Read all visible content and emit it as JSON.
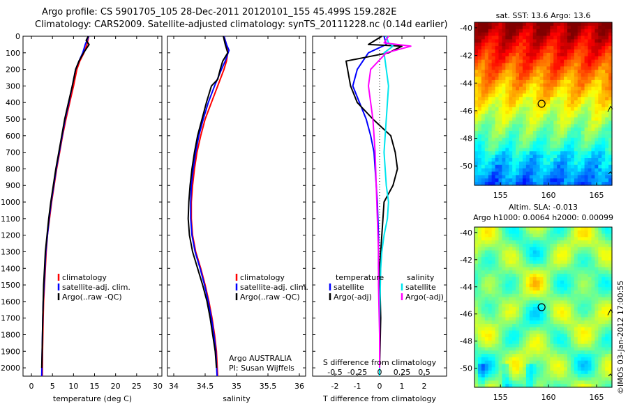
{
  "header": {
    "line1": "Argo profile: CS 5901705_105 28-Dec-2011 20120101_155 45.499S 159.282E",
    "line2": "Climatology: CARS2009. Satellite-adjusted climatology: synTS_20111228.nc (0.14d earlier)"
  },
  "watermark": "©IMOS 03-Jan-2012 17:00:55",
  "colors": {
    "climatology": "#ff0000",
    "satellite": "#0000ff",
    "argo": "#000000",
    "satellite_salinity": "#00e5ee",
    "argo_salinity": "#ff00ff",
    "dotted": "#000000"
  },
  "chart_data": [
    {
      "type": "line",
      "xlabel": "temperature (deg C)",
      "ylabel": "",
      "xlim": [
        -2,
        31
      ],
      "ylim": [
        2050,
        0
      ],
      "xticks": [
        "0",
        "5",
        "10",
        "15",
        "20",
        "25",
        "30"
      ],
      "yticks": [
        "0",
        "100",
        "200",
        "300",
        "400",
        "500",
        "600",
        "700",
        "800",
        "900",
        "1000",
        "1100",
        "1200",
        "1300",
        "1400",
        "1500",
        "1600",
        "1700",
        "1800",
        "1900",
        "2000"
      ],
      "legend": {
        "position": "lower-middle",
        "entries": [
          "climatology",
          "satellite-adj. clim.",
          "Argo(..raw -QC)"
        ]
      },
      "series": [
        {
          "name": "climatology",
          "color": "#ff0000",
          "x": [
            13.6,
            13.2,
            12.5,
            11.5,
            10.8,
            10.0,
            9.1,
            8.2,
            7.4,
            6.7,
            6.0,
            5.4,
            4.8,
            4.3,
            3.8,
            3.5,
            3.3,
            3.1,
            2.9,
            2.8,
            2.65,
            2.6
          ],
          "y": [
            0,
            50,
            100,
            150,
            200,
            300,
            400,
            500,
            600,
            700,
            800,
            900,
            1000,
            1100,
            1200,
            1300,
            1400,
            1500,
            1600,
            1700,
            1900,
            2050
          ]
        },
        {
          "name": "satellite-adj. clim.",
          "color": "#0000ff",
          "x": [
            13.6,
            12.8,
            12.2,
            11.3,
            10.5,
            9.7,
            8.9,
            8.0,
            7.3,
            6.6,
            5.9,
            5.3,
            4.7,
            4.2,
            3.8,
            3.4,
            3.2,
            3.0,
            2.8,
            2.7,
            2.55,
            2.45
          ],
          "y": [
            0,
            50,
            100,
            150,
            200,
            300,
            400,
            500,
            600,
            700,
            800,
            900,
            1000,
            1100,
            1200,
            1300,
            1400,
            1500,
            1600,
            1700,
            1900,
            2050
          ]
        },
        {
          "name": "Argo(..raw -QC)",
          "color": "#000000",
          "x": [
            13.5,
            13.0,
            13.7,
            12.4,
            11.3,
            10.5,
            9.7,
            8.8,
            7.9,
            7.2,
            6.5,
            5.8,
            5.2,
            4.6,
            4.1,
            3.7,
            3.3,
            3.1,
            2.9,
            2.8,
            2.7,
            2.55,
            2.45
          ],
          "y": [
            0,
            25,
            50,
            100,
            150,
            200,
            300,
            400,
            500,
            600,
            700,
            800,
            900,
            1000,
            1100,
            1200,
            1300,
            1400,
            1500,
            1600,
            1700,
            1900,
            2000
          ]
        }
      ],
      "annotations": []
    },
    {
      "type": "line",
      "xlabel": "salinity",
      "ylabel": "",
      "xlim": [
        33.9,
        36.1
      ],
      "ylim": [
        2050,
        0
      ],
      "xticks": [
        "34",
        "34.5",
        "35",
        "35.5",
        "36"
      ],
      "legend": {
        "position": "lower-middle",
        "entries": [
          "climatology",
          "satellite-adj. clim.",
          "Argo(..raw -QC)"
        ]
      },
      "series": [
        {
          "name": "climatology",
          "color": "#ff0000",
          "x": [
            34.8,
            34.84,
            34.86,
            34.84,
            34.8,
            34.7,
            34.6,
            34.5,
            34.43,
            34.37,
            34.33,
            34.3,
            34.28,
            34.28,
            34.3,
            34.35,
            34.43,
            34.5,
            34.56,
            34.61,
            34.65,
            34.68,
            34.7
          ],
          "y": [
            0,
            50,
            100,
            150,
            200,
            300,
            400,
            500,
            600,
            700,
            800,
            900,
            1000,
            1100,
            1200,
            1300,
            1400,
            1500,
            1600,
            1700,
            1800,
            1900,
            2050
          ]
        },
        {
          "name": "satellite-adj. clim.",
          "color": "#0000ff",
          "x": [
            34.8,
            34.84,
            34.88,
            34.82,
            34.76,
            34.65,
            34.55,
            34.47,
            34.4,
            34.35,
            34.31,
            34.28,
            34.27,
            34.27,
            34.29,
            34.34,
            34.42,
            34.49,
            34.55,
            34.6,
            34.64,
            34.67,
            34.69
          ],
          "y": [
            0,
            50,
            85,
            150,
            200,
            300,
            400,
            500,
            600,
            700,
            800,
            900,
            1000,
            1100,
            1200,
            1300,
            1400,
            1500,
            1600,
            1700,
            1800,
            1900,
            2050
          ]
        },
        {
          "name": "Argo(..raw -QC)",
          "color": "#000000",
          "x": [
            34.79,
            34.82,
            34.86,
            34.78,
            34.74,
            34.7,
            34.6,
            34.52,
            34.45,
            34.38,
            34.33,
            34.29,
            34.26,
            34.24,
            34.23,
            34.25,
            34.3,
            34.38,
            34.46,
            34.53,
            34.58,
            34.62,
            34.66,
            34.68
          ],
          "y": [
            0,
            50,
            100,
            150,
            200,
            260,
            300,
            400,
            500,
            600,
            700,
            800,
            900,
            1000,
            1100,
            1200,
            1300,
            1400,
            1500,
            1600,
            1700,
            1800,
            1900,
            2000
          ]
        }
      ],
      "annotations": [
        "Argo AUSTRALIA",
        "PI: Susan Wijffels"
      ]
    },
    {
      "type": "line",
      "xlabel": "T difference from climatology",
      "top_xlabel": "S difference from climatology",
      "xlim": [
        -3,
        3
      ],
      "ylim": [
        2050,
        0
      ],
      "xticks": [
        "-2",
        "-1",
        "0",
        "1",
        "2"
      ],
      "top_xticks": [
        "-0.5",
        "-0.25",
        "0",
        "0.25",
        "0.5"
      ],
      "legend": {
        "position": "lower-middle",
        "temperature_header": "temperature",
        "salinity_header": "salinity",
        "entries": [
          "satellite",
          "Argo(-adj)",
          "satellite",
          "Argo(-adj)"
        ]
      },
      "series": [
        {
          "name": "temperature satellite",
          "color": "#0000ff",
          "x": [
            0.2,
            0.3,
            -0.5,
            -1.0,
            -1.2,
            -0.9,
            -0.6,
            -0.4,
            -0.25,
            -0.2,
            -0.15,
            -0.1,
            -0.05,
            -0.05,
            0,
            0
          ],
          "y": [
            0,
            50,
            100,
            200,
            300,
            400,
            500,
            600,
            700,
            800,
            900,
            1000,
            1200,
            1400,
            1700,
            2050
          ]
        },
        {
          "name": "temperature Argo(-adj)",
          "color": "#000000",
          "x": [
            0.1,
            -0.5,
            1.0,
            0.4,
            -1.5,
            -1.3,
            -1.0,
            -0.3,
            0.5,
            0.7,
            0.8,
            0.6,
            0.2,
            0.1,
            0,
            0.05,
            0
          ],
          "y": [
            0,
            50,
            60,
            100,
            150,
            300,
            400,
            500,
            600,
            700,
            800,
            900,
            1000,
            1200,
            1400,
            1700,
            2000
          ]
        },
        {
          "name": "salinity satellite",
          "color": "#00e5ee",
          "x": [
            0.3,
            0.4,
            0.6,
            0.2,
            0.4,
            0.3,
            0.2,
            0.3,
            0.4,
            0.35,
            0.2,
            0.1,
            0.05,
            0,
            0
          ],
          "y": [
            0,
            40,
            60,
            100,
            300,
            500,
            700,
            900,
            1000,
            1100,
            1200,
            1300,
            1400,
            1700,
            2050
          ]
        },
        {
          "name": "salinity Argo(-adj)",
          "color": "#ff00ff",
          "x": [
            0.4,
            0.2,
            1.4,
            0.3,
            -0.4,
            -0.5,
            -0.3,
            -0.2,
            -0.15,
            -0.1,
            -0.05,
            -0.05,
            0,
            0
          ],
          "y": [
            0,
            40,
            60,
            100,
            200,
            300,
            500,
            700,
            900,
            1100,
            1300,
            1500,
            1800,
            2000
          ]
        }
      ],
      "annotations": []
    },
    {
      "type": "heatmap",
      "title": "sat. SST: 13.6  Argo: 13.6",
      "xlim": [
        152.3,
        166.6
      ],
      "ylim": [
        -51.4,
        -39.6
      ],
      "xticks": [
        "155",
        "160",
        "165"
      ],
      "yticks": [
        "-40",
        "-42",
        "-44",
        "-46",
        "-48",
        "-50"
      ],
      "marker": {
        "lon": 159.28,
        "lat": -45.5
      },
      "colormap": "jet"
    },
    {
      "type": "heatmap",
      "title": "Altim. SLA: -0.013",
      "subtitle": "Argo h1000: 0.0064 h2000: 0.00099",
      "xlim": [
        152.3,
        166.6
      ],
      "ylim": [
        -51.4,
        -39.6
      ],
      "xticks": [
        "155",
        "160",
        "165"
      ],
      "yticks": [
        "-40",
        "-42",
        "-44",
        "-46",
        "-48",
        "-50"
      ],
      "marker": {
        "lon": 159.28,
        "lat": -45.5
      },
      "colormap": "jet"
    }
  ]
}
